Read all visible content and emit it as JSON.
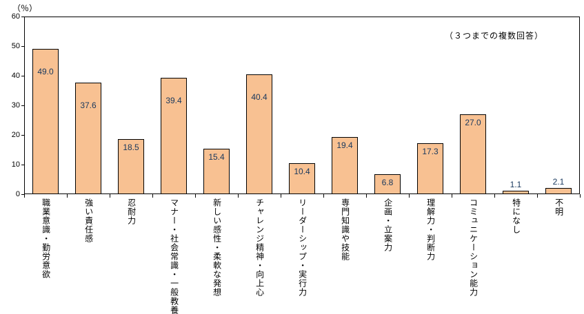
{
  "chart_data": {
    "type": "bar",
    "title": "",
    "unit_label": "（％）",
    "annotation": "（３つまでの複数回答）",
    "ylabel": "（％）",
    "xlabel": "",
    "ylim": [
      0,
      60
    ],
    "yticks": [
      0,
      10,
      20,
      30,
      40,
      50,
      60
    ],
    "grid": false,
    "legend": "none",
    "bar_color": "#F8C192",
    "bar_border_color": "#000000",
    "value_label_color": "#17375D",
    "categories": [
      "職業意識・勤労意欲",
      "強い責任感",
      "忍耐力",
      "マナー・社会常識・一般教養",
      "新しい感性・柔軟な発想",
      "チャレンジ精神・向上心",
      "リーダーシップ・実行力",
      "専門知識や技能",
      "企画・立案力",
      "理解力・判断力",
      "コミュニケーション能力",
      "特になし",
      "不明"
    ],
    "values": [
      49.0,
      37.6,
      18.5,
      39.4,
      15.4,
      40.4,
      10.4,
      19.4,
      6.8,
      17.3,
      27.0,
      1.1,
      2.1
    ],
    "value_labels": [
      "49.0",
      "37.6",
      "18.5",
      "39.4",
      "15.4",
      "40.4",
      "10.4",
      "19.4",
      "6.8",
      "17.3",
      "27.0",
      "1.1",
      "2.1"
    ]
  }
}
